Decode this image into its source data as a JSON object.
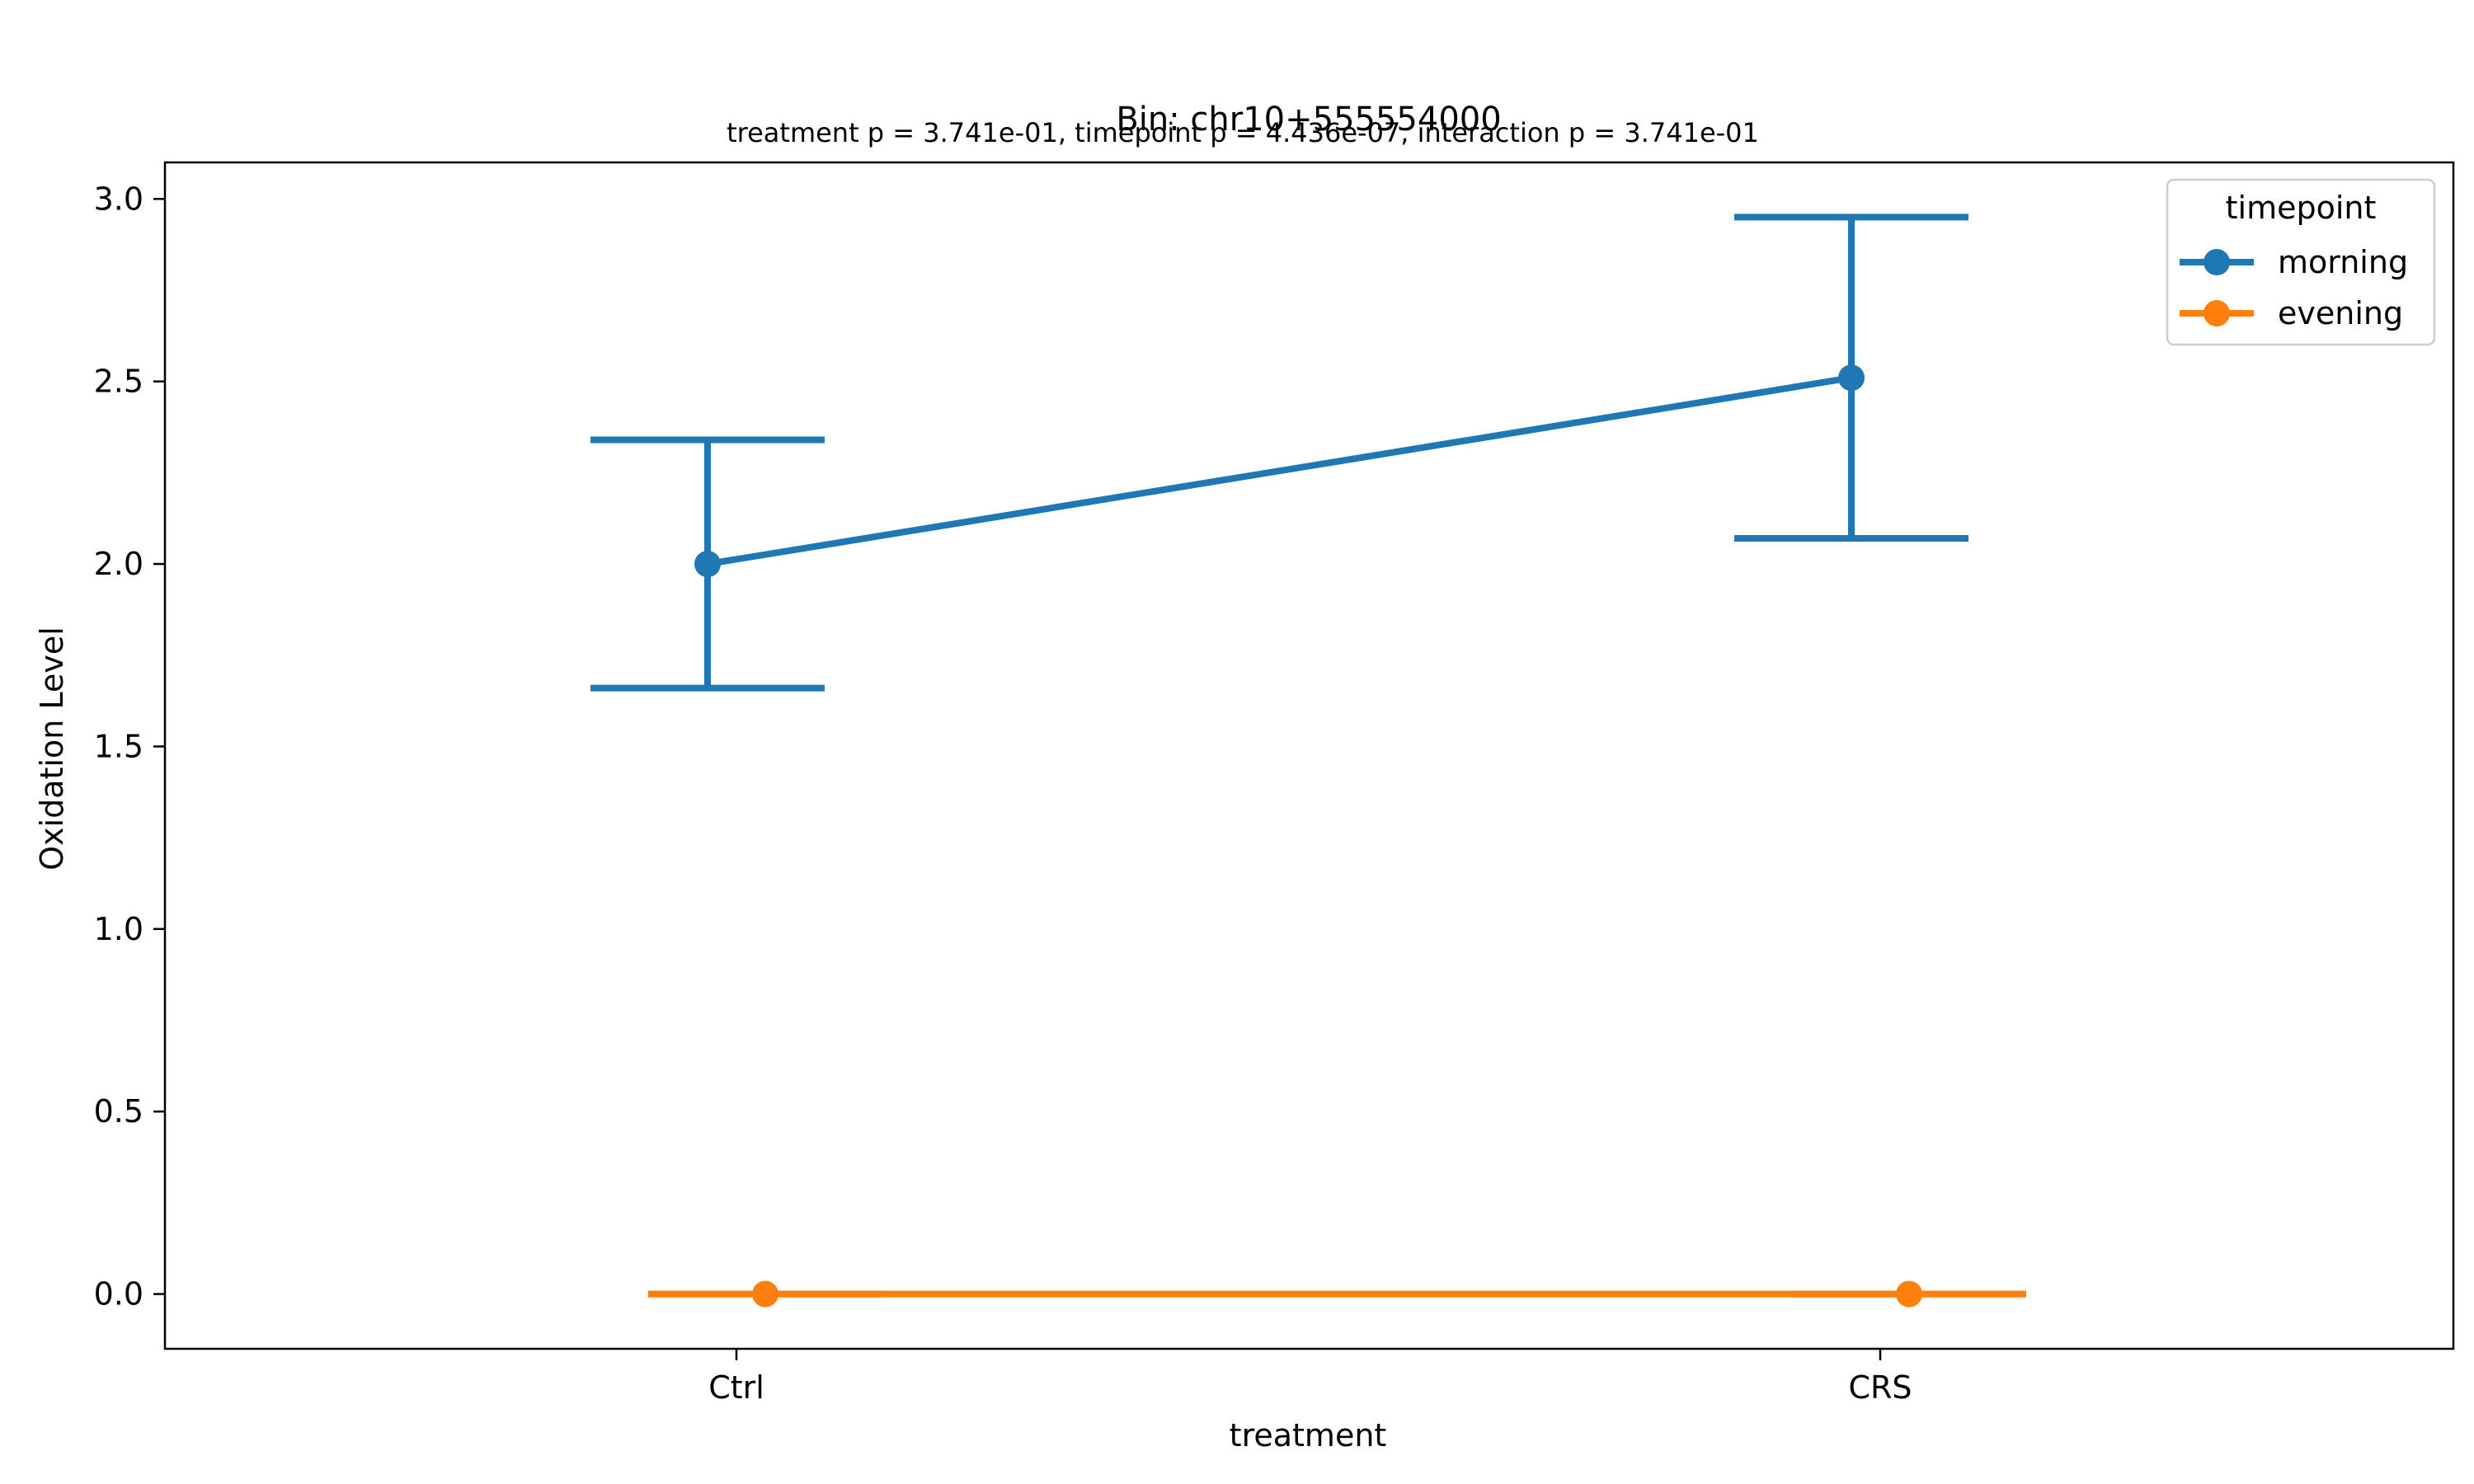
{
  "chart_data": {
    "type": "line",
    "title": "Bin: chr10+555554000",
    "subtitle": "treatment p = 3.741e-01, timepoint p = 4.436e-07, interaction p = 3.741e-01",
    "xlabel": "treatment",
    "ylabel": "Oxidation Level",
    "categories": [
      "Ctrl",
      "CRS"
    ],
    "ylim": [
      -0.15,
      3.1
    ],
    "yticks": [
      "0.0",
      "0.5",
      "1.0",
      "1.5",
      "2.0",
      "2.5",
      "3.0"
    ],
    "grid": false,
    "legend": {
      "title": "timepoint",
      "placement": "top-right"
    },
    "series": [
      {
        "name": "morning",
        "color": "#1f77b4",
        "values": [
          2.0,
          2.51
        ],
        "error_low": [
          1.66,
          2.07
        ],
        "error_high": [
          2.34,
          2.95
        ]
      },
      {
        "name": "evening",
        "color": "#ff7f0e",
        "values": [
          0.0,
          0.0
        ],
        "error_low": [
          0.0,
          0.0
        ],
        "error_high": [
          0.0,
          0.0
        ]
      }
    ]
  }
}
